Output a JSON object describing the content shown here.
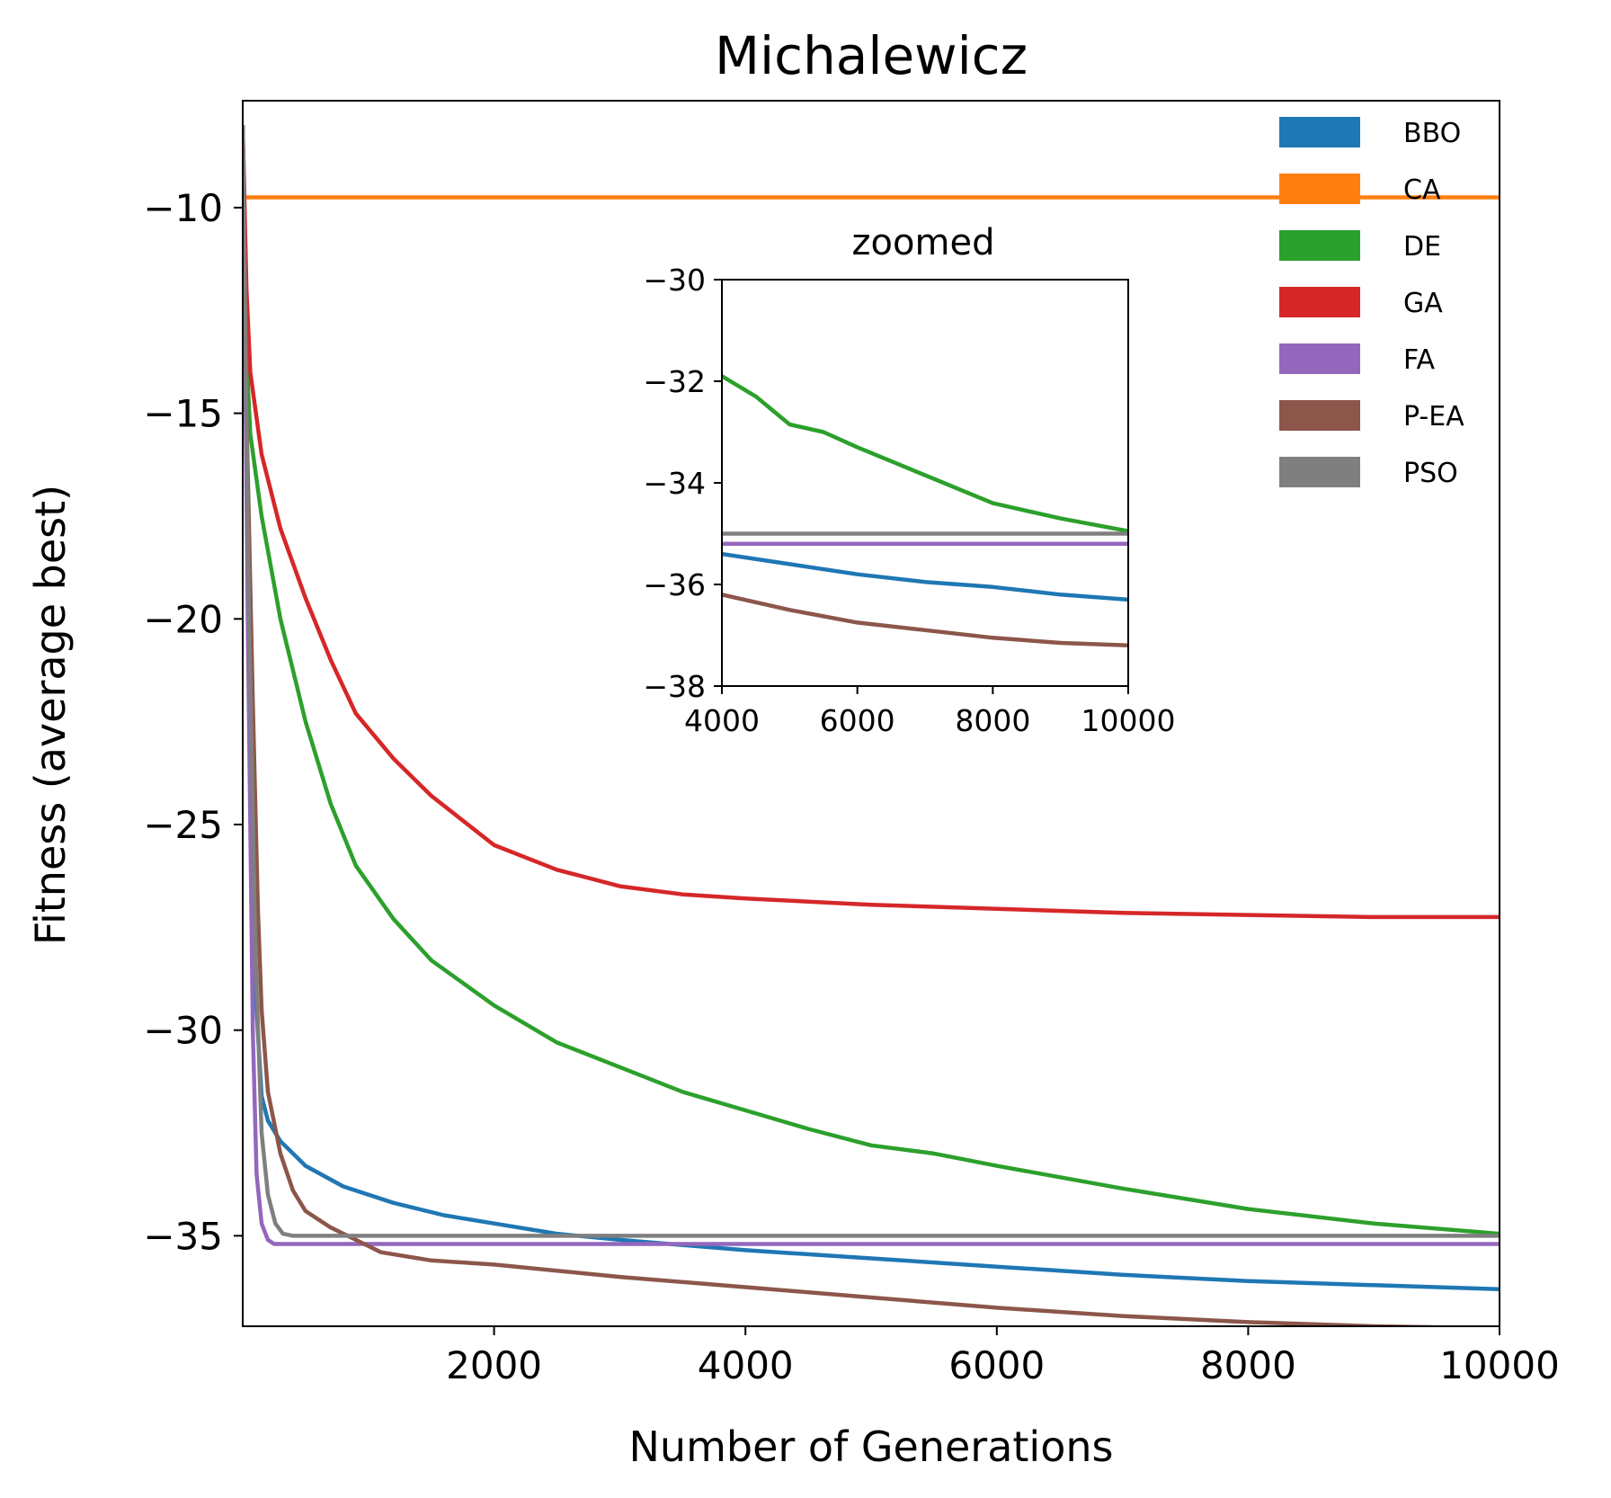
{
  "chart_data": {
    "type": "line",
    "title": "Michalewicz",
    "xlabel": "Number of Generations",
    "ylabel": "Fitness (average best)",
    "xlim": [
      0,
      10000
    ],
    "ylim": [
      -37.2,
      -7.4
    ],
    "xticks": [
      2000,
      4000,
      6000,
      8000,
      10000
    ],
    "xtick_labels": [
      "2000",
      "4000",
      "6000",
      "8000",
      "10000"
    ],
    "yticks": [
      -10,
      -15,
      -20,
      -25,
      -30,
      -35
    ],
    "ytick_labels": [
      "−10",
      "−15",
      "−20",
      "−25",
      "−30",
      "−35"
    ],
    "grid": false,
    "legend_position": "top-right",
    "series": [
      {
        "name": "BBO",
        "color": "#1f77b4",
        "points": [
          [
            0,
            -8
          ],
          [
            50,
            -20
          ],
          [
            100,
            -29
          ],
          [
            150,
            -31.6
          ],
          [
            200,
            -32.2
          ],
          [
            300,
            -32.7
          ],
          [
            500,
            -33.3
          ],
          [
            800,
            -33.8
          ],
          [
            1200,
            -34.2
          ],
          [
            1600,
            -34.5
          ],
          [
            2000,
            -34.7
          ],
          [
            2500,
            -34.95
          ],
          [
            3000,
            -35.1
          ],
          [
            4000,
            -35.35
          ],
          [
            5000,
            -35.55
          ],
          [
            6000,
            -35.75
          ],
          [
            7000,
            -35.95
          ],
          [
            8000,
            -36.1
          ],
          [
            9000,
            -36.2
          ],
          [
            10000,
            -36.3
          ]
        ]
      },
      {
        "name": "CA",
        "color": "#ff7f0e",
        "points": [
          [
            0,
            -9.75
          ],
          [
            10000,
            -9.75
          ]
        ]
      },
      {
        "name": "DE",
        "color": "#2ca02c",
        "points": [
          [
            0,
            -8
          ],
          [
            20,
            -13
          ],
          [
            60,
            -15.5
          ],
          [
            150,
            -17.5
          ],
          [
            300,
            -20
          ],
          [
            500,
            -22.5
          ],
          [
            700,
            -24.5
          ],
          [
            900,
            -26
          ],
          [
            1200,
            -27.3
          ],
          [
            1500,
            -28.3
          ],
          [
            2000,
            -29.4
          ],
          [
            2500,
            -30.3
          ],
          [
            3000,
            -30.9
          ],
          [
            3500,
            -31.5
          ],
          [
            4000,
            -31.95
          ],
          [
            4500,
            -32.4
          ],
          [
            5000,
            -32.8
          ],
          [
            5500,
            -33.0
          ],
          [
            6000,
            -33.3
          ],
          [
            7000,
            -33.85
          ],
          [
            8000,
            -34.35
          ],
          [
            9000,
            -34.7
          ],
          [
            10000,
            -34.95
          ]
        ]
      },
      {
        "name": "GA",
        "color": "#d62728",
        "points": [
          [
            0,
            -8
          ],
          [
            30,
            -12
          ],
          [
            60,
            -14
          ],
          [
            150,
            -16
          ],
          [
            300,
            -17.8
          ],
          [
            500,
            -19.5
          ],
          [
            700,
            -21
          ],
          [
            900,
            -22.3
          ],
          [
            1200,
            -23.4
          ],
          [
            1500,
            -24.3
          ],
          [
            2000,
            -25.5
          ],
          [
            2500,
            -26.1
          ],
          [
            3000,
            -26.5
          ],
          [
            3500,
            -26.7
          ],
          [
            4000,
            -26.8
          ],
          [
            5000,
            -26.95
          ],
          [
            6000,
            -27.05
          ],
          [
            7000,
            -27.15
          ],
          [
            8000,
            -27.2
          ],
          [
            9000,
            -27.25
          ],
          [
            10000,
            -27.25
          ]
        ]
      },
      {
        "name": "FA",
        "color": "#9467bd",
        "points": [
          [
            0,
            -8
          ],
          [
            40,
            -20
          ],
          [
            80,
            -30
          ],
          [
            110,
            -33.5
          ],
          [
            150,
            -34.7
          ],
          [
            200,
            -35.1
          ],
          [
            250,
            -35.2
          ],
          [
            400,
            -35.2
          ],
          [
            10000,
            -35.2
          ]
        ]
      },
      {
        "name": "P-EA",
        "color": "#8c564b",
        "points": [
          [
            0,
            -8
          ],
          [
            30,
            -15
          ],
          [
            80,
            -22
          ],
          [
            120,
            -27
          ],
          [
            150,
            -29.5
          ],
          [
            200,
            -31.5
          ],
          [
            300,
            -33
          ],
          [
            400,
            -33.9
          ],
          [
            500,
            -34.4
          ],
          [
            700,
            -34.8
          ],
          [
            900,
            -35.1
          ],
          [
            1100,
            -35.4
          ],
          [
            1500,
            -35.6
          ],
          [
            2000,
            -35.7
          ],
          [
            3000,
            -36.0
          ],
          [
            4000,
            -36.25
          ],
          [
            5000,
            -36.5
          ],
          [
            6000,
            -36.75
          ],
          [
            7000,
            -36.95
          ],
          [
            8000,
            -37.1
          ],
          [
            9000,
            -37.2
          ],
          [
            10000,
            -37.25
          ]
        ]
      },
      {
        "name": "PSO",
        "color": "#7f7f7f",
        "points": [
          [
            0,
            -8
          ],
          [
            50,
            -20
          ],
          [
            100,
            -28
          ],
          [
            150,
            -32.5
          ],
          [
            200,
            -34
          ],
          [
            260,
            -34.7
          ],
          [
            320,
            -34.95
          ],
          [
            400,
            -35.0
          ],
          [
            10000,
            -35.0
          ]
        ]
      }
    ],
    "inset": {
      "title": "zoomed",
      "xlim": [
        4000,
        10000
      ],
      "ylim": [
        -38,
        -30
      ],
      "xticks": [
        4000,
        6000,
        8000,
        10000
      ],
      "xtick_labels": [
        "4000",
        "6000",
        "8000",
        "10000"
      ],
      "yticks": [
        -30,
        -32,
        -34,
        -36,
        -38
      ],
      "ytick_labels": [
        "−30",
        "−32",
        "−34",
        "−36",
        "−38"
      ],
      "series": [
        {
          "name": "BBO",
          "color": "#1f77b4",
          "points": [
            [
              4000,
              -35.4
            ],
            [
              5000,
              -35.6
            ],
            [
              6000,
              -35.8
            ],
            [
              7000,
              -35.95
            ],
            [
              8000,
              -36.05
            ],
            [
              9000,
              -36.2
            ],
            [
              10000,
              -36.3
            ]
          ]
        },
        {
          "name": "DE",
          "color": "#2ca02c",
          "points": [
            [
              4000,
              -31.9
            ],
            [
              4500,
              -32.3
            ],
            [
              5000,
              -32.85
            ],
            [
              5500,
              -33.0
            ],
            [
              6000,
              -33.3
            ],
            [
              7000,
              -33.85
            ],
            [
              8000,
              -34.4
            ],
            [
              9000,
              -34.7
            ],
            [
              10000,
              -34.95
            ]
          ]
        },
        {
          "name": "FA",
          "color": "#9467bd",
          "points": [
            [
              4000,
              -35.2
            ],
            [
              10000,
              -35.2
            ]
          ]
        },
        {
          "name": "P-EA",
          "color": "#8c564b",
          "points": [
            [
              4000,
              -36.2
            ],
            [
              5000,
              -36.5
            ],
            [
              6000,
              -36.75
            ],
            [
              7000,
              -36.9
            ],
            [
              8000,
              -37.05
            ],
            [
              9000,
              -37.15
            ],
            [
              10000,
              -37.2
            ]
          ]
        },
        {
          "name": "PSO",
          "color": "#7f7f7f",
          "points": [
            [
              4000,
              -35.0
            ],
            [
              10000,
              -35.0
            ]
          ]
        }
      ]
    }
  }
}
